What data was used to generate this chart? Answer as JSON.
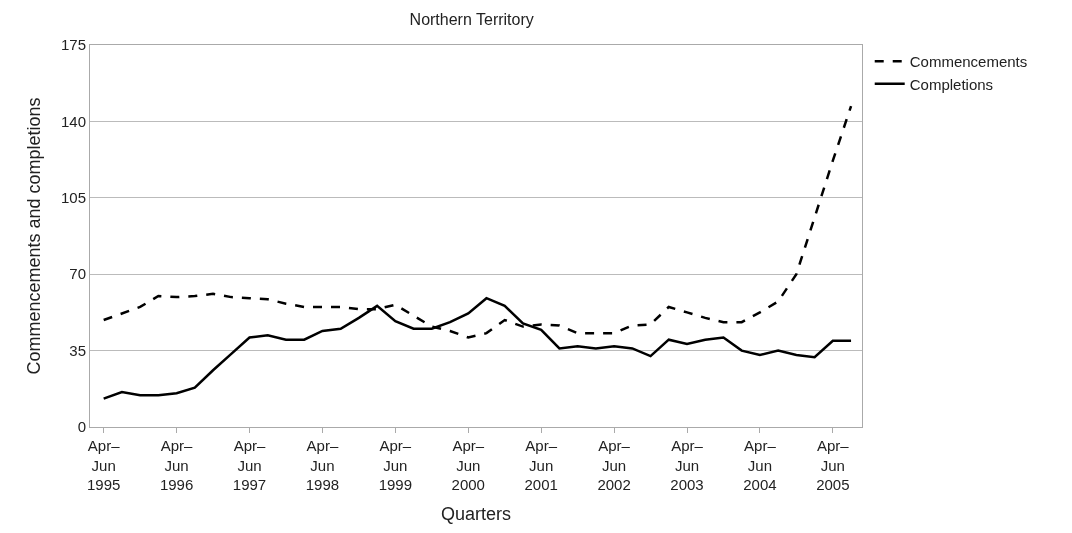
{
  "chart_data": {
    "type": "line",
    "title": "Northern Territory",
    "xlabel": "Quarters",
    "ylabel": "Commencements and completions",
    "categories": [
      "Apr–\nJun\n1995",
      null,
      null,
      null,
      "Apr–\nJun\n1996",
      null,
      null,
      null,
      "Apr–\nJun\n1997",
      null,
      null,
      null,
      "Apr–\nJun\n1998",
      null,
      null,
      null,
      "Apr–\nJun\n1999",
      null,
      null,
      null,
      "Apr–\nJun\n2000",
      null,
      null,
      null,
      "Apr–\nJun\n2001",
      null,
      null,
      null,
      "Apr–\nJun\n2002",
      null,
      null,
      null,
      "Apr–\nJun\n2003",
      null,
      null,
      null,
      "Apr–\nJun\n2004",
      null,
      null,
      null,
      "Apr–\nJun\n2005",
      null
    ],
    "series": [
      {
        "name": "Commencements",
        "color": "#000000",
        "line_style": "dashed",
        "values": [
          49,
          52,
          55,
          60,
          59.5,
          60,
          61,
          59.5,
          59,
          58.5,
          56.5,
          55,
          55,
          55,
          54,
          54,
          56,
          51,
          46,
          44,
          41,
          43,
          49,
          46,
          47,
          46.5,
          43,
          43,
          43,
          46.5,
          47,
          55,
          52.5,
          50,
          48,
          48,
          52.5,
          57.5,
          70,
          96,
          122,
          147
        ]
      },
      {
        "name": "Completions",
        "color": "#000000",
        "line_style": "solid",
        "values": [
          13,
          16,
          14.5,
          14.5,
          15.5,
          18,
          26,
          33.5,
          41,
          42,
          40,
          40,
          44,
          45,
          50,
          55.5,
          48.5,
          45,
          45,
          48,
          52,
          59,
          55.5,
          47.5,
          44.5,
          36,
          37,
          36,
          37,
          36,
          32.5,
          40,
          38,
          40,
          41,
          35,
          33,
          35,
          33,
          32,
          39.5,
          39.5
        ]
      }
    ],
    "ylim": [
      0,
      175
    ],
    "yticks": [
      0,
      35,
      70,
      105,
      140,
      175
    ],
    "grid": "y",
    "legend": "top right",
    "marker": "none"
  }
}
